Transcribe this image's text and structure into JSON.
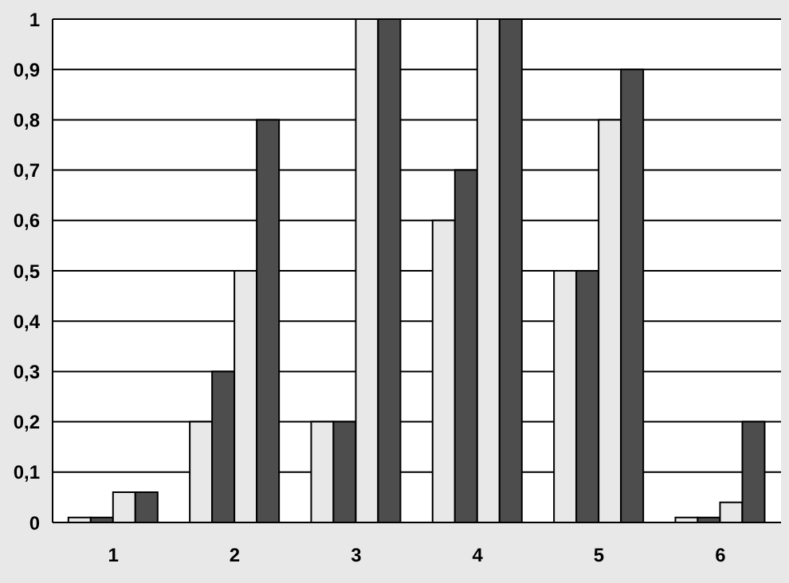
{
  "chart_data": {
    "type": "bar",
    "categories": [
      "1",
      "2",
      "3",
      "4",
      "5",
      "6"
    ],
    "series": [
      {
        "color": "#e8e8e8",
        "values": [
          0.01,
          0.2,
          0.2,
          0.6,
          0.5,
          0.01
        ]
      },
      {
        "color": "#4d4d4d",
        "values": [
          0.01,
          0.3,
          0.2,
          0.7,
          0.5,
          0.01
        ]
      },
      {
        "color": "#e8e8e8",
        "values": [
          0.06,
          0.5,
          1,
          1,
          0.8,
          0.04
        ]
      },
      {
        "color": "#4d4d4d",
        "values": [
          0.06,
          0.8,
          1,
          1,
          0.9,
          0.2
        ]
      }
    ],
    "ylim": [
      0,
      1
    ],
    "yticks": [
      0,
      {
        "value": 0.1,
        "label": "0,1"
      },
      {
        "value": 0.2,
        "label": "0,2"
      },
      {
        "value": 0.3,
        "label": "0,3"
      },
      {
        "value": 0.4,
        "label": "0,4"
      },
      {
        "value": 0.5,
        "label": "0,5"
      },
      {
        "value": 0.6,
        "label": "0,6"
      },
      {
        "value": 0.7,
        "label": "0,7"
      },
      {
        "value": 0.8,
        "label": "0,8"
      },
      {
        "value": 0.9,
        "label": "0,9"
      },
      1
    ],
    "grid": "y",
    "legend": false
  }
}
